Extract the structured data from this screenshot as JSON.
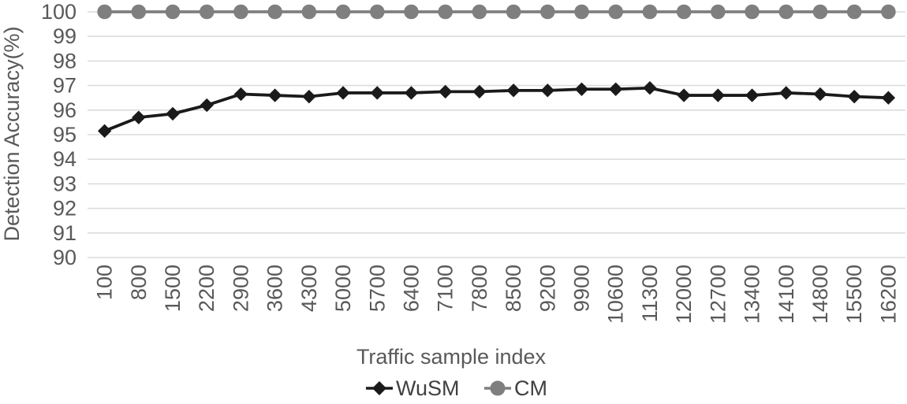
{
  "chart_data": {
    "type": "line",
    "title": "",
    "xlabel": "Traffic sample index",
    "ylabel": "Detection Accuracy(%)",
    "categories": [
      "100",
      "800",
      "1500",
      "2200",
      "2900",
      "3600",
      "4300",
      "5000",
      "5700",
      "6400",
      "7100",
      "7800",
      "8500",
      "9200",
      "9900",
      "10600",
      "11300",
      "12000",
      "12700",
      "13400",
      "14100",
      "14800",
      "15500",
      "16200"
    ],
    "series": [
      {
        "name": "WuSM",
        "marker": "diamond",
        "color": "#1a1a1a",
        "values": [
          95.15,
          95.7,
          95.85,
          96.2,
          96.65,
          96.6,
          96.55,
          96.7,
          96.7,
          96.7,
          96.75,
          96.75,
          96.8,
          96.8,
          96.85,
          96.85,
          96.9,
          96.6,
          96.6,
          96.6,
          96.7,
          96.65,
          96.55,
          96.5
        ]
      },
      {
        "name": "CM",
        "marker": "circle",
        "color": "#7f7f7f",
        "values": [
          100,
          100,
          100,
          100,
          100,
          100,
          100,
          100,
          100,
          100,
          100,
          100,
          100,
          100,
          100,
          100,
          100,
          100,
          100,
          100,
          100,
          100,
          100,
          100
        ]
      }
    ],
    "ylim": [
      90,
      100
    ],
    "ytick_step": 1,
    "x_label_rotation": -90,
    "grid": "horizontal",
    "legend_position": "bottom",
    "axis_text_color": "#595959",
    "legend_text_color": "#404040",
    "gridline_color": "#dcdcdc",
    "background_color": "#ffffff"
  }
}
